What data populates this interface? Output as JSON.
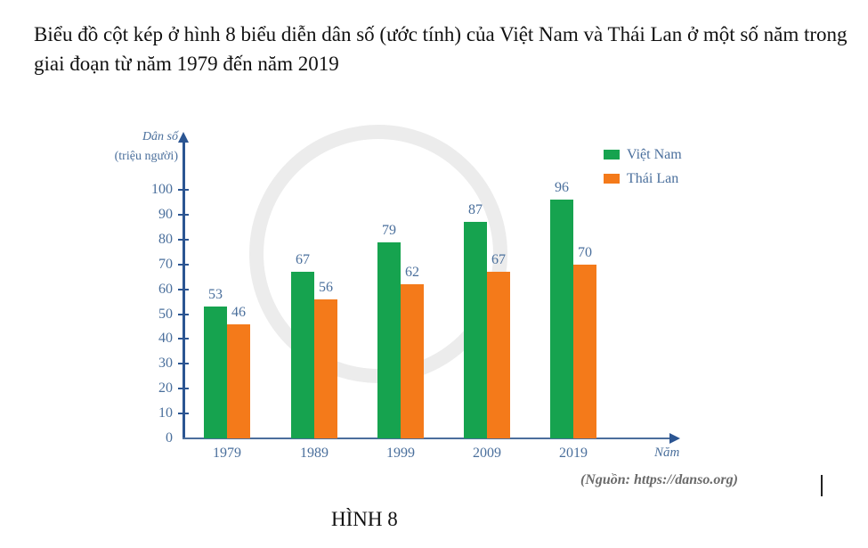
{
  "intro_text": "Biểu đồ cột kép ở hình 8 biểu diễn dân số (ước tính) của Việt Nam và Thái Lan ở một số năm trong giai đoạn từ năm 1979 đến năm 2019",
  "caption": "HÌNH 8",
  "source": "(Nguồn: https://danso.org)",
  "colors": {
    "viet_nam": "#16a34f",
    "thai_lan": "#f47a1a",
    "axis": "#2b5592",
    "label": "#4a6f9c"
  },
  "chart_data": {
    "type": "bar",
    "title": "",
    "ylabel": "Dân số",
    "ylabel_unit": "(triệu người)",
    "xlabel": "Năm",
    "categories": [
      "1979",
      "1989",
      "1999",
      "2009",
      "2019"
    ],
    "series": [
      {
        "name": "Việt Nam",
        "color": "#16a34f",
        "values": [
          53,
          67,
          79,
          87,
          96
        ]
      },
      {
        "name": "Thái Lan",
        "color": "#f47a1a",
        "values": [
          46,
          56,
          62,
          67,
          70
        ]
      }
    ],
    "ylim": [
      0,
      100
    ],
    "yticks": [
      "0",
      "10",
      "20",
      "30",
      "40",
      "50",
      "60",
      "70",
      "80",
      "90",
      "100"
    ],
    "grid": false,
    "legend_position": "top-right",
    "data_labels": true,
    "source": "(Nguồn: https://danso.org)"
  }
}
